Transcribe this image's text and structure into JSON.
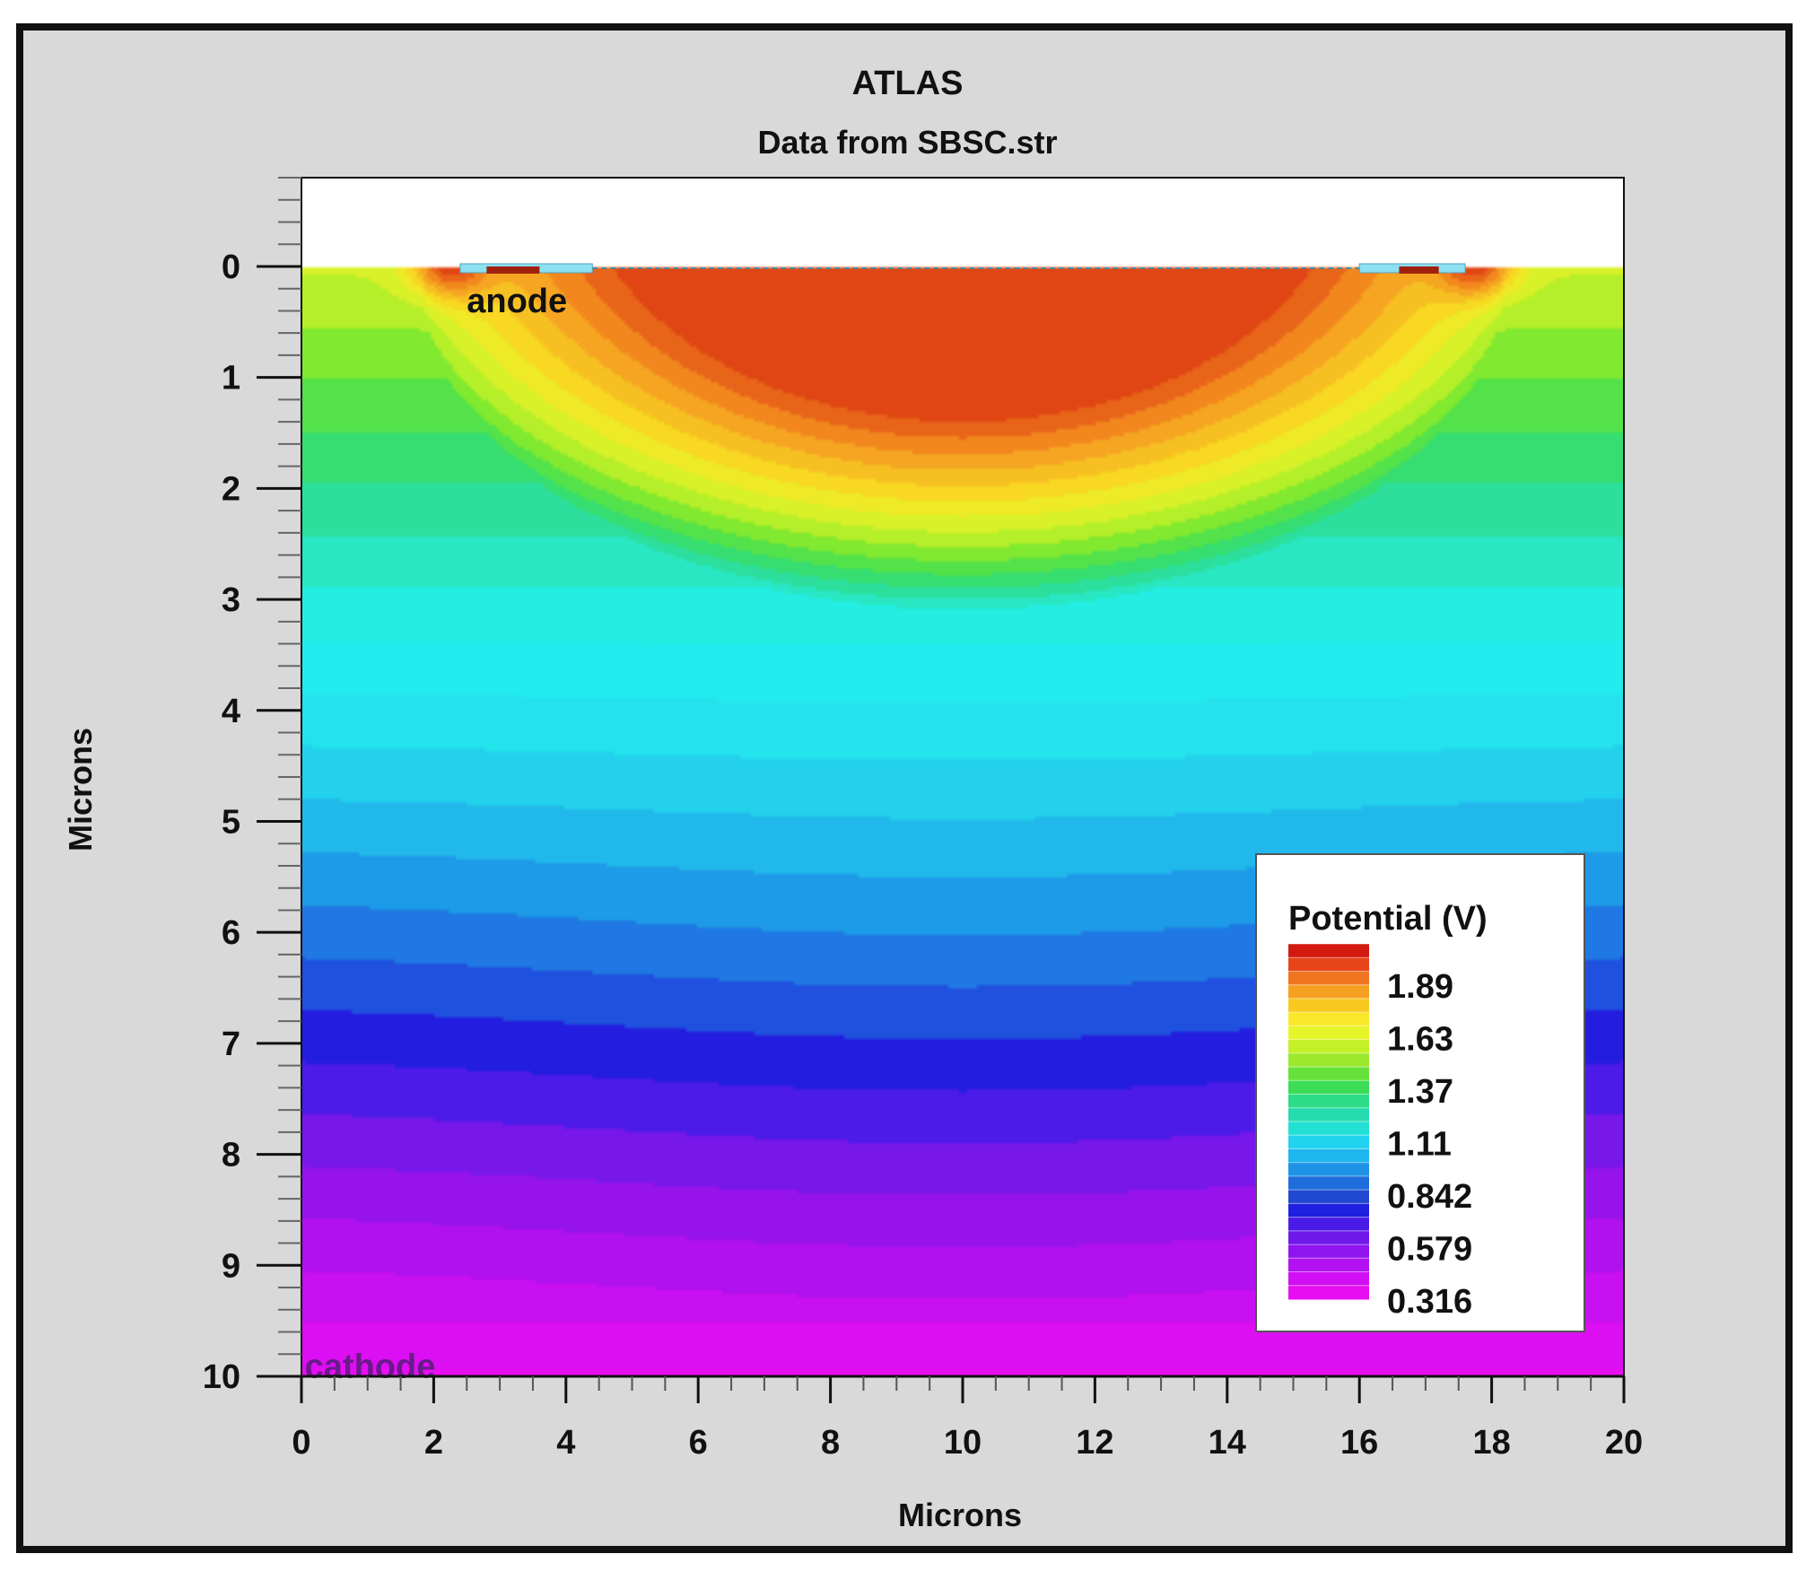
{
  "chart_data": {
    "type": "heatmap",
    "title": "ATLAS",
    "subtitle": "Data from SBSC.str",
    "xlabel": "Microns",
    "ylabel": "Microns",
    "xlim": [
      0,
      20
    ],
    "ylim": [
      10,
      -0.8
    ],
    "x_ticks": [
      "0",
      "2",
      "4",
      "6",
      "8",
      "10",
      "12",
      "14",
      "16",
      "18",
      "20"
    ],
    "y_ticks": [
      "0",
      "1",
      "2",
      "3",
      "4",
      "5",
      "6",
      "7",
      "8",
      "9",
      "10"
    ],
    "annotations": [
      {
        "text": "anode",
        "x": 2.5,
        "y": 0.3,
        "color": "#111111"
      },
      {
        "text": "cathode",
        "x": 0.05,
        "y": 9.9,
        "color": "#6a1a8a"
      }
    ],
    "legend": {
      "title": "Potential (V)",
      "placement": "bottom-right",
      "labels": [
        "1.89",
        "1.63",
        "1.37",
        "1.11",
        "0.842",
        "0.579",
        "0.316"
      ],
      "colors": [
        "#d21a10",
        "#e8441a",
        "#f17420",
        "#f5a020",
        "#f8c820",
        "#f9e82a",
        "#e6f528",
        "#c4f028",
        "#9be82e",
        "#66e23a",
        "#3ddc57",
        "#2cdc86",
        "#26dcae",
        "#22e0d4",
        "#22d4f0",
        "#1fb6ee",
        "#1e93e6",
        "#1f6ddc",
        "#2048d0",
        "#1f1fe0",
        "#4a1be6",
        "#6e18ea",
        "#9014ee",
        "#b212f0",
        "#d10ff2",
        "#e80ef2"
      ]
    },
    "potential_range_v": [
      0.2,
      2.0
    ],
    "colorbar_values": [
      1.89,
      1.63,
      1.37,
      1.11,
      0.842,
      0.579,
      0.316
    ]
  }
}
